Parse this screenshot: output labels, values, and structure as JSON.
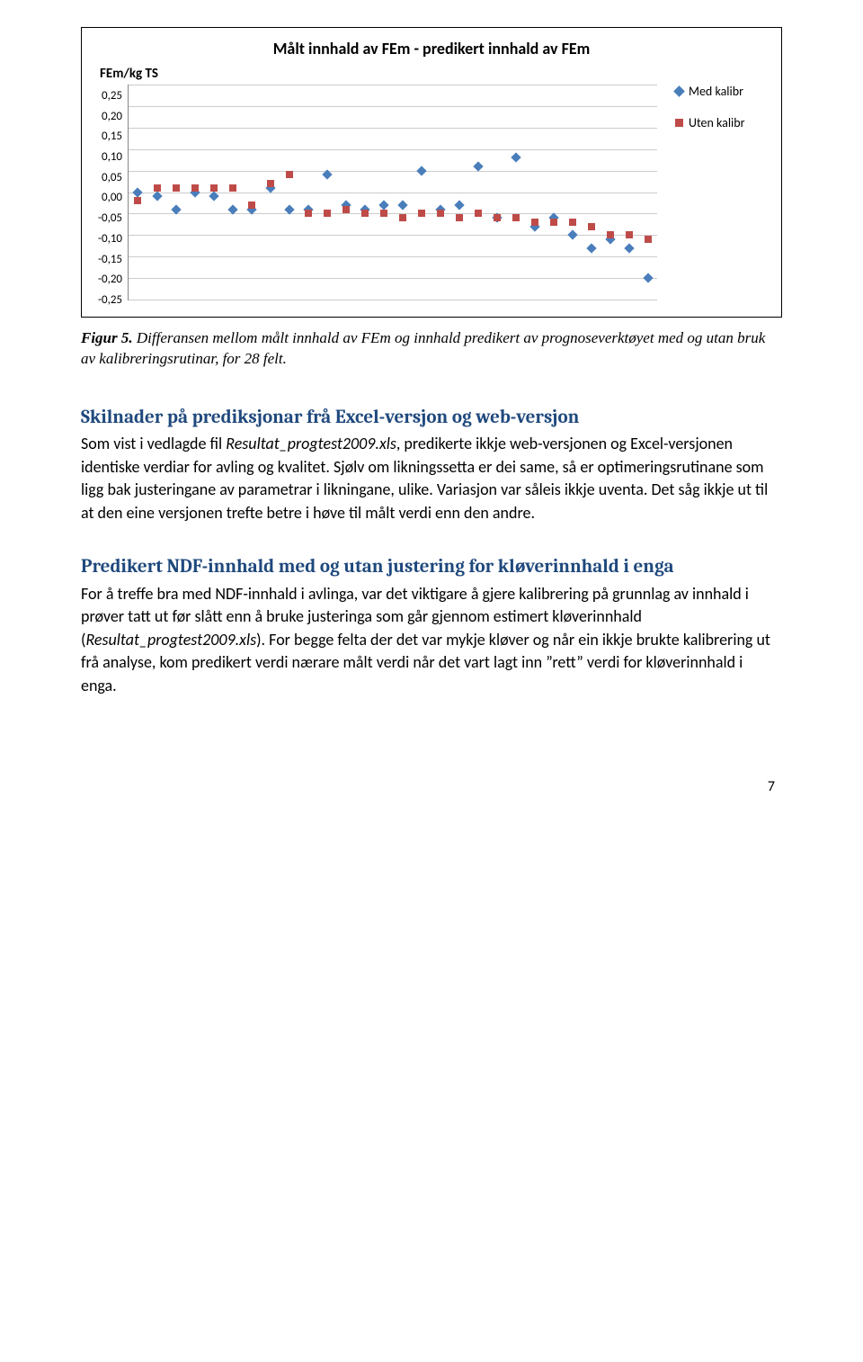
{
  "chart": {
    "type": "scatter",
    "title": "Målt innhald av FEm - predikert innhald av FEm",
    "y_axis_label": "FEm/kg TS",
    "ylim": [
      -0.25,
      0.25
    ],
    "ytick_step": 0.05,
    "y_ticks": [
      "0,25",
      "0,20",
      "0,15",
      "0,10",
      "0,05",
      "0,00",
      "-0,05",
      "-0,10",
      "-0,15",
      "-0,20",
      "-0,25"
    ],
    "background_color": "#ffffff",
    "grid_color": "#cccccc",
    "axis_color": "#888888",
    "x_count": 28,
    "series": [
      {
        "name": "Med kalibr",
        "marker": "diamond",
        "color": "#4a7ebb",
        "values": [
          0.0,
          -0.01,
          -0.04,
          0.0,
          -0.01,
          -0.04,
          -0.04,
          0.01,
          -0.04,
          -0.04,
          0.04,
          -0.03,
          -0.04,
          -0.03,
          -0.03,
          0.05,
          -0.04,
          -0.03,
          0.06,
          -0.06,
          0.08,
          -0.08,
          -0.06,
          -0.1,
          -0.13,
          -0.11,
          -0.13,
          -0.2
        ],
        "marker_size": 8
      },
      {
        "name": "Uten kalibr",
        "marker": "square",
        "color": "#be4b48",
        "values": [
          -0.02,
          0.01,
          0.01,
          0.01,
          0.01,
          0.01,
          -0.03,
          0.02,
          0.04,
          -0.05,
          -0.05,
          -0.04,
          -0.05,
          -0.05,
          -0.06,
          -0.05,
          -0.05,
          -0.06,
          -0.05,
          -0.06,
          -0.06,
          -0.07,
          -0.07,
          -0.07,
          -0.08,
          -0.1,
          -0.1,
          -0.11
        ],
        "marker_size": 8
      }
    ],
    "legend": {
      "items": [
        "Med kalibr",
        "Uten kalibr"
      ],
      "fontsize": 14
    }
  },
  "figure_caption": {
    "label": "Figur 5.",
    "text": "Differansen mellom målt innhald av FEm og innhald predikert av prognoseverktøyet med og utan bruk av kalibreringsrutinar, for 28 felt."
  },
  "section1": {
    "heading": "Skilnader på prediksjonar frå Excel-versjon og web-versjon",
    "para_pre": "Som vist i vedlagde fil ",
    "para_file": "Resultat_progtest2009.xls",
    "para_post": ", predikerte ikkje web-versjonen og Excel-versjonen identiske verdiar for avling og kvalitet. Sjølv om likningssetta er dei same, så er optimeringsrutinane som ligg bak justeringane av parametrar i likningane, ulike. Variasjon var såleis ikkje uventa. Det såg ikkje ut til at den eine versjonen trefte betre i høve til målt verdi enn den andre."
  },
  "section2": {
    "heading": "Predikert NDF-innhald med og utan justering for kløverinnhald i enga",
    "para_pre": "For å treffe bra med NDF-innhald i avlinga, var det viktigare å gjere kalibrering på grunnlag av innhald i prøver tatt ut før slått enn å bruke justeringa som går gjennom estimert kløverinnhald (",
    "para_file": "Resultat_progtest2009.xls",
    "para_post": ").  For begge felta der det var mykje kløver og når ein ikkje brukte kalibrering ut frå analyse, kom predikert verdi nærare målt verdi når det vart lagt inn ”rett” verdi for kløverinnhald i enga."
  },
  "page_number": "7"
}
